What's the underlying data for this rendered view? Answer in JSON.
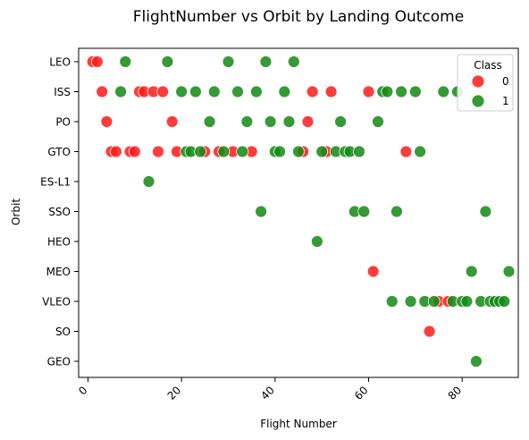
{
  "chart_data": {
    "type": "scatter",
    "title": "FlightNumber vs Orbit by Landing Outcome",
    "xlabel": "Flight Number",
    "ylabel": "Orbit",
    "xlim": [
      -2,
      92
    ],
    "xticks": [
      0,
      20,
      40,
      60,
      80
    ],
    "categories": [
      "LEO",
      "ISS",
      "PO",
      "GTO",
      "ES-L1",
      "SSO",
      "HEO",
      "MEO",
      "VLEO",
      "SO",
      "GEO"
    ],
    "legend": {
      "title": "Class",
      "position": "top-right",
      "entries": [
        "0",
        "1"
      ]
    },
    "colors": {
      "0": "#ff1a1a",
      "1": "#138a13"
    },
    "grid": false,
    "series": [
      {
        "name": "0",
        "points": [
          [
            1,
            "LEO"
          ],
          [
            2,
            "LEO"
          ],
          [
            3,
            "ISS"
          ],
          [
            11,
            "ISS"
          ],
          [
            12,
            "ISS"
          ],
          [
            14,
            "ISS"
          ],
          [
            16,
            "ISS"
          ],
          [
            48,
            "ISS"
          ],
          [
            52,
            "ISS"
          ],
          [
            60,
            "ISS"
          ],
          [
            4,
            "PO"
          ],
          [
            18,
            "PO"
          ],
          [
            47,
            "PO"
          ],
          [
            5,
            "GTO"
          ],
          [
            6,
            "GTO"
          ],
          [
            9,
            "GTO"
          ],
          [
            10,
            "GTO"
          ],
          [
            15,
            "GTO"
          ],
          [
            19,
            "GTO"
          ],
          [
            25,
            "GTO"
          ],
          [
            28,
            "GTO"
          ],
          [
            31,
            "GTO"
          ],
          [
            35,
            "GTO"
          ],
          [
            46,
            "GTO"
          ],
          [
            51,
            "GTO"
          ],
          [
            68,
            "GTO"
          ],
          [
            61,
            "MEO"
          ],
          [
            75,
            "VLEO"
          ],
          [
            77,
            "VLEO"
          ],
          [
            73,
            "SO"
          ]
        ]
      },
      {
        "name": "1",
        "points": [
          [
            8,
            "LEO"
          ],
          [
            17,
            "LEO"
          ],
          [
            30,
            "LEO"
          ],
          [
            38,
            "LEO"
          ],
          [
            44,
            "LEO"
          ],
          [
            7,
            "ISS"
          ],
          [
            20,
            "ISS"
          ],
          [
            23,
            "ISS"
          ],
          [
            27,
            "ISS"
          ],
          [
            32,
            "ISS"
          ],
          [
            36,
            "ISS"
          ],
          [
            42,
            "ISS"
          ],
          [
            63,
            "ISS"
          ],
          [
            64,
            "ISS"
          ],
          [
            67,
            "ISS"
          ],
          [
            70,
            "ISS"
          ],
          [
            76,
            "ISS"
          ],
          [
            79,
            "ISS"
          ],
          [
            26,
            "PO"
          ],
          [
            34,
            "PO"
          ],
          [
            39,
            "PO"
          ],
          [
            43,
            "PO"
          ],
          [
            54,
            "PO"
          ],
          [
            62,
            "PO"
          ],
          [
            21,
            "GTO"
          ],
          [
            22,
            "GTO"
          ],
          [
            24,
            "GTO"
          ],
          [
            29,
            "GTO"
          ],
          [
            33,
            "GTO"
          ],
          [
            40,
            "GTO"
          ],
          [
            41,
            "GTO"
          ],
          [
            45,
            "GTO"
          ],
          [
            50,
            "GTO"
          ],
          [
            53,
            "GTO"
          ],
          [
            55,
            "GTO"
          ],
          [
            56,
            "GTO"
          ],
          [
            58,
            "GTO"
          ],
          [
            71,
            "GTO"
          ],
          [
            13,
            "ES-L1"
          ],
          [
            37,
            "SSO"
          ],
          [
            57,
            "SSO"
          ],
          [
            59,
            "SSO"
          ],
          [
            66,
            "SSO"
          ],
          [
            85,
            "SSO"
          ],
          [
            49,
            "HEO"
          ],
          [
            82,
            "MEO"
          ],
          [
            90,
            "MEO"
          ],
          [
            65,
            "VLEO"
          ],
          [
            69,
            "VLEO"
          ],
          [
            72,
            "VLEO"
          ],
          [
            74,
            "VLEO"
          ],
          [
            78,
            "VLEO"
          ],
          [
            80,
            "VLEO"
          ],
          [
            81,
            "VLEO"
          ],
          [
            84,
            "VLEO"
          ],
          [
            86,
            "VLEO"
          ],
          [
            87,
            "VLEO"
          ],
          [
            88,
            "VLEO"
          ],
          [
            89,
            "VLEO"
          ],
          [
            83,
            "GEO"
          ]
        ]
      }
    ]
  }
}
